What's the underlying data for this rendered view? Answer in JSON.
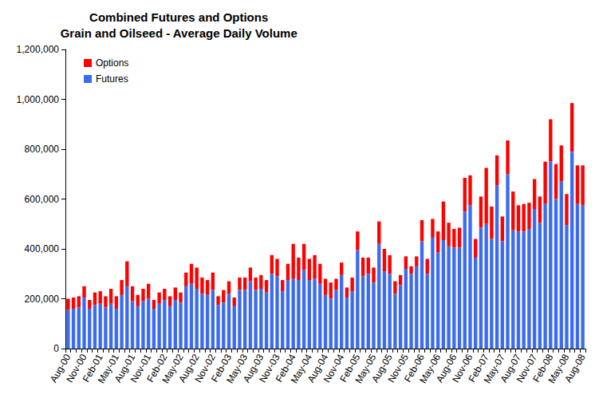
{
  "chart_data": {
    "type": "bar",
    "title": "Combined Futures and Options\nGrain and Oilseed - Average Daily Volume",
    "stacked": true,
    "grid": false,
    "legend": "top-left",
    "categories": [
      "Aug-00",
      null,
      null,
      "Nov-00",
      null,
      null,
      "Feb-01",
      null,
      null,
      "May-01",
      null,
      null,
      "Aug-01",
      null,
      null,
      "Nov-01",
      null,
      null,
      "Feb-02",
      null,
      null,
      "May-02",
      null,
      null,
      "Aug-02",
      null,
      null,
      "Nov-02",
      null,
      null,
      "Feb-03",
      null,
      null,
      "May-03",
      null,
      null,
      "Aug-03",
      null,
      null,
      "Nov-03",
      null,
      null,
      "Feb-04",
      null,
      null,
      "May-04",
      null,
      null,
      "Aug-04",
      null,
      null,
      "Nov-04",
      null,
      null,
      "Feb-05",
      null,
      null,
      "May-05",
      null,
      null,
      "Aug-05",
      null,
      null,
      "Nov-05",
      null,
      null,
      "Feb-06",
      null,
      null,
      "May-06",
      null,
      null,
      "Aug-06",
      null,
      null,
      "Nov-06",
      null,
      null,
      "Feb-07",
      null,
      null,
      "May-07",
      null,
      null,
      "Aug-07",
      null,
      null,
      "Nov-07",
      null,
      null,
      "Feb-08",
      null,
      null,
      "May-08",
      null,
      null,
      "Aug-08"
    ],
    "series": [
      {
        "name": "Options",
        "color": "#ff0000",
        "values": [
          45000,
          45000,
          45000,
          45000,
          35000,
          50000,
          50000,
          45000,
          60000,
          50000,
          60000,
          100000,
          60000,
          45000,
          50000,
          60000,
          35000,
          45000,
          45000,
          40000,
          50000,
          40000,
          55000,
          80000,
          85000,
          65000,
          60000,
          70000,
          35000,
          50000,
          50000,
          35000,
          50000,
          50000,
          55000,
          50000,
          55000,
          50000,
          75000,
          70000,
          45000,
          65000,
          140000,
          90000,
          105000,
          85000,
          95000,
          80000,
          65000,
          65000,
          45000,
          50000,
          40000,
          55000,
          75000,
          75000,
          65000,
          60000,
          90000,
          90000,
          75000,
          50000,
          40000,
          50000,
          30000,
          40000,
          85000,
          60000,
          75000,
          85000,
          155000,
          95000,
          75000,
          80000,
          135000,
          120000,
          75000,
          125000,
          225000,
          130000,
          120000,
          100000,
          135000,
          155000,
          105000,
          110000,
          105000,
          120000,
          105000,
          170000,
          170000,
          140000,
          145000,
          125000,
          195000,
          155000,
          160000
        ]
      },
      {
        "name": "Futures",
        "color": "#3b6cf0",
        "values": [
          155000,
          160000,
          165000,
          205000,
          160000,
          175000,
          180000,
          165000,
          180000,
          160000,
          215000,
          250000,
          190000,
          170000,
          190000,
          200000,
          160000,
          180000,
          195000,
          170000,
          195000,
          185000,
          250000,
          260000,
          240000,
          220000,
          215000,
          235000,
          175000,
          185000,
          220000,
          170000,
          235000,
          235000,
          270000,
          235000,
          240000,
          225000,
          300000,
          290000,
          230000,
          275000,
          280000,
          275000,
          315000,
          275000,
          280000,
          260000,
          215000,
          200000,
          235000,
          295000,
          205000,
          230000,
          395000,
          290000,
          300000,
          265000,
          420000,
          310000,
          300000,
          220000,
          255000,
          320000,
          300000,
          330000,
          430000,
          300000,
          445000,
          385000,
          435000,
          410000,
          405000,
          405000,
          550000,
          575000,
          365000,
          485000,
          500000,
          440000,
          655000,
          430000,
          700000,
          475000,
          470000,
          470000,
          480000,
          560000,
          505000,
          580000,
          750000,
          600000,
          670000,
          495000,
          790000,
          580000,
          575000
        ]
      }
    ],
    "ylim": [
      0,
      1200000
    ],
    "yticks": [
      0,
      {
        "value": 200000,
        "label": "200,000"
      },
      {
        "value": 400000,
        "label": "400,000"
      },
      {
        "value": 600000,
        "label": "600,000"
      },
      {
        "value": 800000,
        "label": "800,000"
      },
      {
        "value": 1000000,
        "label": "1,000,000"
      },
      {
        "value": 1200000,
        "label": "1,200,000"
      }
    ]
  }
}
